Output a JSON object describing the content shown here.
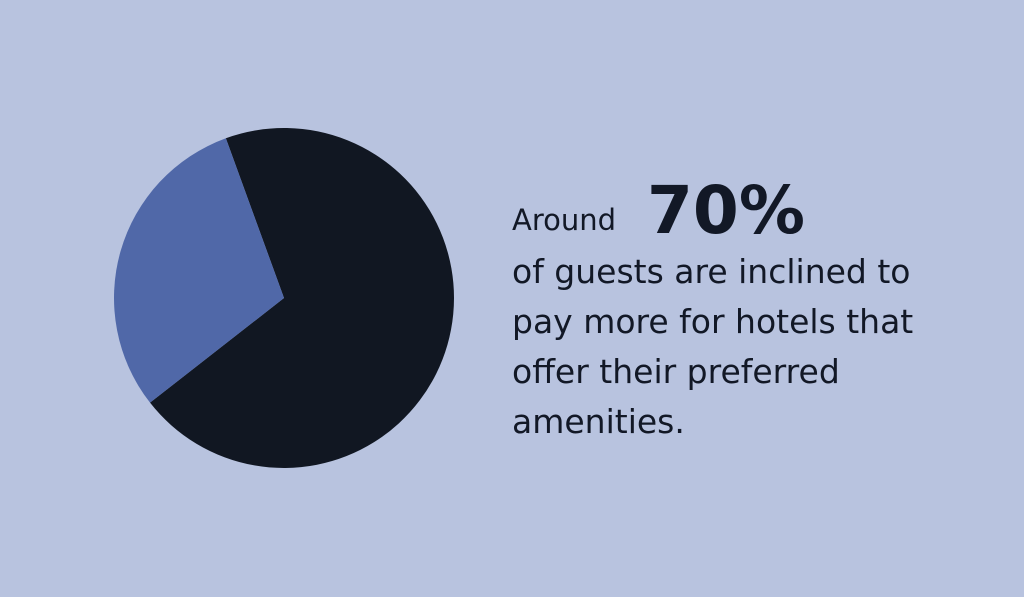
{
  "chart_data": {
    "type": "pie",
    "values": [
      70,
      30
    ],
    "value_labels": [
      "70%",
      null
    ],
    "colors": [
      "#111722",
      "#5068a8"
    ],
    "lead": "Around",
    "text_lines": [
      "of guests are inclined to",
      "pay more for hotels that",
      "offer their preferred",
      "amenities."
    ]
  }
}
